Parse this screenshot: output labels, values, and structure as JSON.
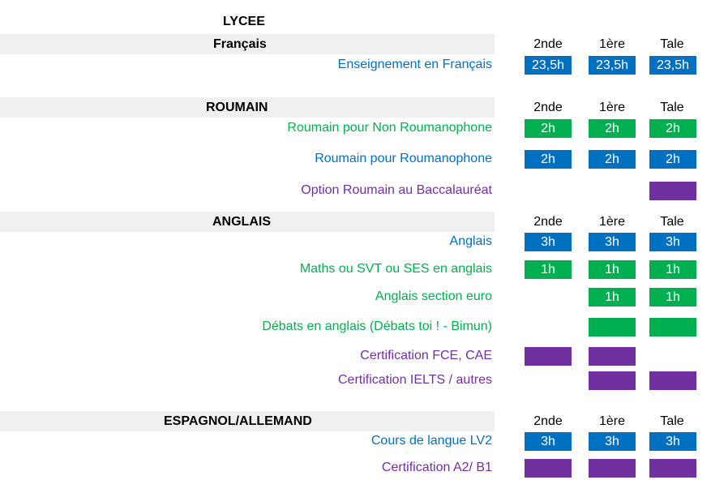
{
  "colors": {
    "blue": "#0070c0",
    "green": "#00b050",
    "purple": "#7030a0",
    "band": "#f0f0f0"
  },
  "title": "LYCEE",
  "column_headers": [
    "2nde",
    "1ère",
    "Tale"
  ],
  "sections": [
    {
      "heading": "Français",
      "rows": [
        {
          "label": "Enseignement en Français",
          "color": "blue",
          "cells": [
            "23,5h",
            "23,5h",
            "23,5h"
          ]
        }
      ]
    },
    {
      "heading": "ROUMAIN",
      "rows": [
        {
          "label": "Roumain pour Non Roumanophone",
          "color": "green",
          "cells": [
            "2h",
            "2h",
            "2h"
          ]
        },
        {
          "label": "Roumain pour Roumanophone",
          "color": "blue",
          "cells": [
            "2h",
            "2h",
            "2h"
          ]
        },
        {
          "label": "Option Roumain au Baccalauréat",
          "color": "purple",
          "cells": [
            null,
            null,
            ""
          ]
        }
      ]
    },
    {
      "heading": "ANGLAIS",
      "rows": [
        {
          "label": "Anglais",
          "color": "blue",
          "cells": [
            "3h",
            "3h",
            "3h"
          ]
        },
        {
          "label": "Maths  ou SVT ou  SES en anglais",
          "color": "green",
          "cells": [
            "1h",
            "1h",
            "1h"
          ]
        },
        {
          "label": "Anglais  section euro",
          "color": "green",
          "cells": [
            null,
            "1h",
            "1h"
          ]
        },
        {
          "label": "Débats en anglais (Débats toi ! - Bimun)",
          "color": "green",
          "cells": [
            null,
            "",
            ""
          ]
        },
        {
          "label": "Certification  FCE, CAE",
          "color": "purple",
          "cells": [
            "",
            "",
            null
          ]
        },
        {
          "label": "Certification IELTS / autres",
          "color": "purple",
          "cells": [
            null,
            "",
            ""
          ]
        }
      ]
    },
    {
      "heading": "ESPAGNOL/ALLEMAND",
      "rows": [
        {
          "label": "Cours de langue  LV2",
          "color": "blue",
          "cells": [
            "3h",
            "3h",
            "3h"
          ]
        },
        {
          "label": "Certification A2/ B1",
          "color": "purple",
          "cells": [
            "",
            "",
            ""
          ]
        }
      ]
    }
  ]
}
